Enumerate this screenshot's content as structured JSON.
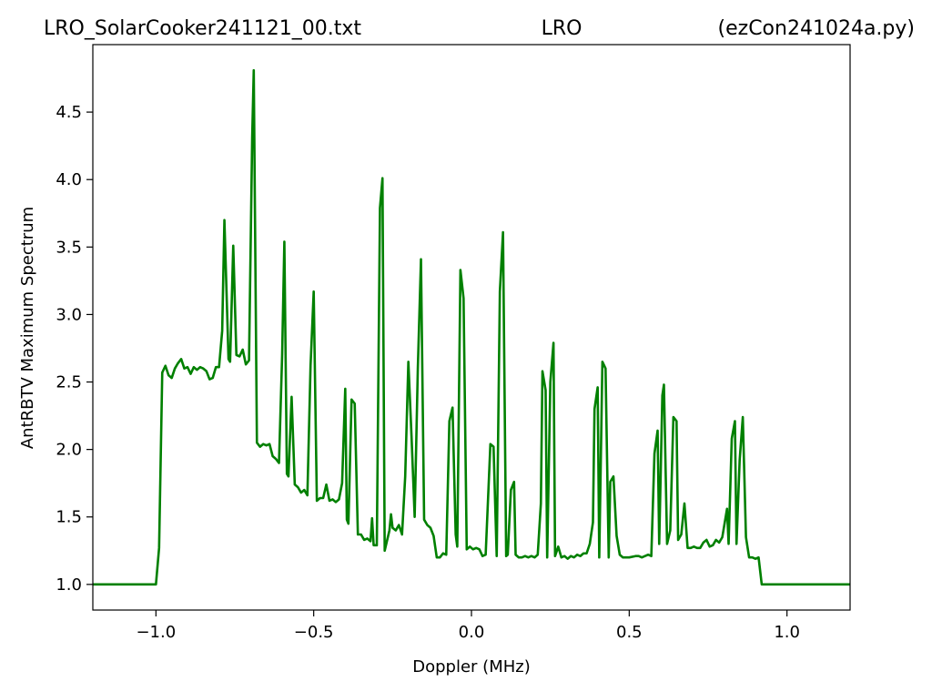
{
  "chart_data": {
    "type": "line",
    "title": [
      "LRO_SolarCooker241121_00.txt",
      "LRO",
      "(ezCon241024a.py)"
    ],
    "xlabel": "Doppler (MHz)",
    "ylabel": "AntRBTV Maximum Spectrum",
    "color": "#008000",
    "x": [
      -1.2,
      -1.0,
      -0.99,
      -0.98,
      -0.97,
      -0.96,
      -0.95,
      -0.94,
      -0.93,
      -0.92,
      -0.91,
      -0.9,
      -0.89,
      -0.88,
      -0.87,
      -0.86,
      -0.85,
      -0.84,
      -0.83,
      -0.82,
      -0.81,
      -0.8,
      -0.79,
      -0.783,
      -0.77,
      -0.765,
      -0.755,
      -0.745,
      -0.735,
      -0.725,
      -0.715,
      -0.705,
      -0.695,
      -0.69,
      -0.68,
      -0.67,
      -0.66,
      -0.65,
      -0.64,
      -0.63,
      -0.62,
      -0.61,
      -0.6,
      -0.593,
      -0.585,
      -0.58,
      -0.57,
      -0.56,
      -0.55,
      -0.54,
      -0.53,
      -0.52,
      -0.51,
      -0.5,
      -0.49,
      -0.48,
      -0.47,
      -0.46,
      -0.45,
      -0.44,
      -0.43,
      -0.42,
      -0.41,
      -0.4,
      -0.395,
      -0.39,
      -0.38,
      -0.37,
      -0.36,
      -0.35,
      -0.34,
      -0.33,
      -0.32,
      -0.315,
      -0.31,
      -0.3,
      -0.29,
      -0.282,
      -0.275,
      -0.26,
      -0.255,
      -0.25,
      -0.24,
      -0.23,
      -0.22,
      -0.21,
      -0.2,
      -0.19,
      -0.18,
      -0.17,
      -0.16,
      -0.15,
      -0.14,
      -0.13,
      -0.12,
      -0.11,
      -0.1,
      -0.09,
      -0.08,
      -0.07,
      -0.06,
      -0.05,
      -0.045,
      -0.035,
      -0.025,
      -0.015,
      -0.005,
      0.005,
      0.015,
      0.025,
      0.035,
      0.045,
      0.06,
      0.07,
      0.075,
      0.08,
      0.09,
      0.1,
      0.11,
      0.115,
      0.125,
      0.135,
      0.14,
      0.15,
      0.16,
      0.17,
      0.18,
      0.19,
      0.2,
      0.21,
      0.22,
      0.225,
      0.235,
      0.24,
      0.25,
      0.26,
      0.265,
      0.275,
      0.285,
      0.295,
      0.305,
      0.315,
      0.325,
      0.335,
      0.345,
      0.355,
      0.365,
      0.375,
      0.385,
      0.39,
      0.4,
      0.405,
      0.415,
      0.425,
      0.435,
      0.44,
      0.45,
      0.46,
      0.47,
      0.48,
      0.5,
      0.52,
      0.53,
      0.54,
      0.55,
      0.56,
      0.57,
      0.58,
      0.59,
      0.595,
      0.605,
      0.61,
      0.62,
      0.63,
      0.64,
      0.65,
      0.655,
      0.665,
      0.675,
      0.685,
      0.695,
      0.705,
      0.715,
      0.725,
      0.735,
      0.745,
      0.755,
      0.765,
      0.775,
      0.785,
      0.795,
      0.81,
      0.815,
      0.825,
      0.835,
      0.84,
      0.85,
      0.86,
      0.87,
      0.88,
      0.89,
      0.9,
      0.91,
      0.92,
      1.2
    ],
    "values": [
      1.0,
      1.0,
      1.27,
      2.57,
      2.62,
      2.55,
      2.53,
      2.6,
      2.64,
      2.67,
      2.6,
      2.61,
      2.56,
      2.61,
      2.59,
      2.61,
      2.6,
      2.58,
      2.52,
      2.53,
      2.61,
      2.61,
      2.88,
      3.7,
      2.67,
      2.65,
      3.51,
      2.7,
      2.69,
      2.74,
      2.63,
      2.66,
      4.31,
      4.81,
      2.05,
      2.02,
      2.04,
      2.03,
      2.04,
      1.95,
      1.93,
      1.9,
      2.7,
      3.54,
      1.82,
      1.8,
      2.39,
      1.74,
      1.72,
      1.68,
      1.7,
      1.66,
      2.62,
      3.17,
      1.62,
      1.64,
      1.64,
      1.74,
      1.62,
      1.63,
      1.61,
      1.63,
      1.75,
      2.45,
      1.48,
      1.45,
      2.37,
      2.34,
      1.37,
      1.37,
      1.33,
      1.34,
      1.32,
      1.49,
      1.29,
      1.29,
      3.79,
      4.01,
      1.25,
      1.4,
      1.52,
      1.42,
      1.4,
      1.44,
      1.37,
      1.8,
      2.65,
      2.1,
      1.5,
      2.6,
      3.41,
      1.48,
      1.44,
      1.42,
      1.36,
      1.2,
      1.2,
      1.23,
      1.22,
      2.21,
      2.31,
      1.37,
      1.28,
      3.33,
      3.12,
      1.26,
      1.28,
      1.26,
      1.27,
      1.26,
      1.21,
      1.22,
      2.04,
      2.02,
      1.61,
      1.21,
      3.17,
      3.61,
      1.21,
      1.22,
      1.7,
      1.76,
      1.22,
      1.2,
      1.2,
      1.21,
      1.2,
      1.21,
      1.2,
      1.22,
      1.6,
      2.58,
      2.44,
      1.2,
      2.5,
      2.79,
      1.21,
      1.28,
      1.2,
      1.21,
      1.19,
      1.21,
      1.2,
      1.22,
      1.21,
      1.23,
      1.23,
      1.3,
      1.46,
      2.3,
      2.46,
      1.2,
      2.65,
      2.6,
      1.2,
      1.76,
      1.8,
      1.36,
      1.22,
      1.2,
      1.2,
      1.21,
      1.21,
      1.2,
      1.21,
      1.22,
      1.21,
      1.97,
      2.14,
      1.3,
      2.4,
      2.48,
      1.3,
      1.4,
      2.24,
      2.21,
      1.33,
      1.37,
      1.6,
      1.27,
      1.27,
      1.28,
      1.27,
      1.27,
      1.31,
      1.33,
      1.28,
      1.29,
      1.33,
      1.31,
      1.35,
      1.56,
      1.3,
      2.08,
      2.21,
      1.3,
      1.92,
      2.24,
      1.35,
      1.2,
      1.2,
      1.19,
      1.2,
      1.0,
      1.0
    ],
    "xlim": [
      -1.2,
      1.2
    ],
    "xticks": [
      {
        "value": -1,
        "label": "−1.0"
      },
      {
        "value": -0.5,
        "label": "−0.5"
      },
      {
        "value": 0,
        "label": "0.0"
      },
      {
        "value": 0.5,
        "label": "0.5"
      },
      {
        "value": 1,
        "label": "1.0"
      }
    ],
    "ylim": [
      0.81,
      5.0
    ],
    "yticks": [
      {
        "value": 1,
        "label": "1.0"
      },
      1.5,
      {
        "value": 2,
        "label": "2.0"
      },
      2.5,
      {
        "value": 3,
        "label": "3.0"
      },
      3.5,
      {
        "value": 4,
        "label": "4.0"
      },
      4.5
    ],
    "grid": false
  }
}
